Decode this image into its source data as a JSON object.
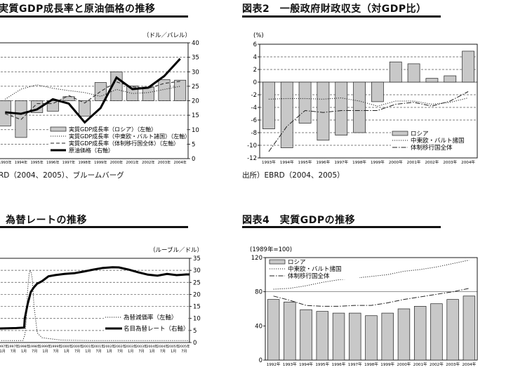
{
  "panels": {
    "p1": {
      "title": "実質GDP成長率と原油価格の推移",
      "source": "RD（2004、2005）、ブルームバーグ"
    },
    "p2": {
      "title": "図表2　一般政府財政収支（対GDP比）",
      "source": "出所）EBRD（2004、2005）"
    },
    "p3": {
      "title": "為替レートの推移"
    },
    "p4": {
      "title": "図表4　実質GDPの推移"
    }
  },
  "chart_data": [
    {
      "type": "bar",
      "panel": "p1",
      "unit_right": "（ドル／バレル）",
      "categories": [
        "1993年",
        "1994年",
        "1995年",
        "1996年",
        "1997年",
        "1998年",
        "1999年",
        "2000年",
        "2001年",
        "2002年",
        "2003年",
        "2004年"
      ],
      "ylim_left": [
        -20,
        20
      ],
      "ylim_right": [
        0,
        40
      ],
      "yticks_right": [
        "40",
        "35",
        "30",
        "25",
        "20",
        "15",
        "10",
        "5",
        "0"
      ],
      "series": [
        {
          "name": "実質GDP成長率（ロシア）（左軸）",
          "style": "bar",
          "values": [
            -8.7,
            -12.7,
            -4.1,
            -3.6,
            1.4,
            -5.3,
            6.3,
            10.0,
            5.1,
            4.7,
            7.3,
            7.1
          ]
        },
        {
          "name": "実質GDP成長率（中東欧・バルト諸国）（左軸）",
          "style": "dotted",
          "values": [
            0.5,
            4.0,
            5.5,
            4.3,
            3.5,
            2.8,
            1.5,
            3.9,
            2.5,
            2.8,
            3.9,
            5.0
          ]
        },
        {
          "name": "実質GDP成長率（体制移行国全体）（左軸）",
          "style": "dashed",
          "values": [
            -4.5,
            -6.5,
            -1.0,
            -1.0,
            1.8,
            -0.8,
            3.2,
            6.5,
            4.8,
            4.3,
            6.0,
            6.7
          ]
        },
        {
          "name": "原油価格（右軸）",
          "style": "thick",
          "values": [
            16.0,
            15.5,
            17.0,
            20.5,
            19.0,
            12.5,
            17.5,
            28.0,
            24.0,
            24.5,
            28.5,
            34.5
          ]
        }
      ]
    },
    {
      "type": "bar",
      "panel": "p2",
      "unit_left": "(%)",
      "categories": [
        "1993年",
        "1994年",
        "1995年",
        "1996年",
        "1997年",
        "1998年",
        "1999年",
        "2000年",
        "2001年",
        "2002年",
        "2003年",
        "2004年"
      ],
      "ylim": [
        -12,
        6
      ],
      "yticks": [
        "6",
        "4",
        "2",
        "0",
        "-2",
        "-4",
        "-6",
        "-8",
        "-10",
        "-12"
      ],
      "series": [
        {
          "name": "ロシア",
          "style": "bar",
          "values": [
            -7.4,
            -10.4,
            -6.5,
            -9.2,
            -8.4,
            -8.0,
            -3.1,
            3.2,
            2.9,
            0.6,
            1.0,
            4.9
          ]
        },
        {
          "name": "中東欧・バルト諸国",
          "style": "dotted",
          "values": [
            -2.7,
            -2.6,
            -2.6,
            -2.7,
            -2.5,
            -3.0,
            -3.8,
            -3.0,
            -3.0,
            -3.5,
            -3.2,
            -2.5
          ]
        },
        {
          "name": "体制移行国全体",
          "style": "dashdot",
          "values": [
            -11.0,
            -7.0,
            -4.5,
            -4.8,
            -4.5,
            -4.5,
            -4.5,
            -3.5,
            -3.2,
            -3.8,
            -3.0,
            -1.5
          ]
        }
      ]
    },
    {
      "type": "line",
      "panel": "p3",
      "unit_right": "（ルーブル／ドル）",
      "ylim_right": [
        0,
        35
      ],
      "yticks_right": [
        "35",
        "30",
        "25",
        "20",
        "15",
        "10",
        "5",
        "0"
      ],
      "x_year_labels": [
        "1997年",
        "1997年",
        "1998年",
        "1998年",
        "1999年",
        "1999年",
        "2000年",
        "2000年",
        "2001年",
        "2001年",
        "2002年",
        "2002年",
        "2003年",
        "2003年",
        "2004年",
        "2004年",
        "2005年",
        "2005年"
      ],
      "x_month_labels": [
        "1月",
        "7月",
        "1月",
        "7月",
        "1月",
        "7月",
        "1月",
        "7月",
        "1月",
        "7月",
        "1月",
        "7月",
        "1月",
        "7月",
        "1月",
        "7月",
        "1月",
        "7月"
      ],
      "series": [
        {
          "name": "為替減価率（左軸）",
          "style": "dotted",
          "x": [
            0,
            4,
            8,
            8.6,
            9,
            9.5,
            10,
            10.4,
            10.9,
            11.5,
            12.5,
            14,
            20,
            30,
            40,
            55,
            60
          ],
          "values": [
            0.8,
            0.8,
            0.8,
            3,
            8,
            22,
            29,
            30,
            27,
            15,
            4,
            2,
            1,
            0.8,
            0.8,
            0.8,
            0.8
          ]
        },
        {
          "name": "名目為替レート（右軸）",
          "style": "thick",
          "x": [
            0,
            6,
            8.4,
            8.6,
            9.5,
            10.5,
            11.5,
            12.5,
            13,
            14,
            16,
            18,
            21,
            24,
            27,
            30,
            33,
            36,
            38,
            41,
            44,
            47,
            50,
            53,
            56,
            59,
            60
          ],
          "values": [
            5.8,
            6.0,
            6.2,
            10.0,
            16.0,
            21.0,
            23.0,
            24.5,
            24.8,
            25.5,
            27.5,
            28.0,
            28.5,
            28.8,
            29.5,
            30.3,
            31.0,
            31.3,
            31.2,
            30.3,
            29.2,
            28.2,
            27.8,
            28.5,
            28.0,
            28.3,
            28.3
          ]
        }
      ]
    },
    {
      "type": "bar",
      "panel": "p4",
      "unit_left": "(1989年=100)",
      "categories": [
        "1992年",
        "1993年",
        "1994年",
        "1995年",
        "1996年",
        "1997年",
        "1998年",
        "1999年",
        "2000年",
        "2001年",
        "2002年",
        "2003年",
        "2004年"
      ],
      "ylim": [
        0,
        120
      ],
      "yticks": [
        "120",
        "80",
        "40",
        "0"
      ],
      "series": [
        {
          "name": "ロシア",
          "style": "bar",
          "values": [
            71,
            68,
            59,
            57,
            55,
            55,
            52,
            55,
            60,
            63,
            66,
            71,
            75
          ]
        },
        {
          "name": "中東欧・バルト諸国",
          "style": "dotted",
          "values": [
            83,
            84,
            87,
            91,
            94,
            96,
            98,
            100,
            104,
            106,
            109,
            113,
            117
          ]
        },
        {
          "name": "体制移行国全体",
          "style": "dashdot",
          "values": [
            75,
            70,
            64,
            63,
            63,
            64,
            64,
            67,
            71,
            74,
            77,
            80,
            84
          ]
        }
      ]
    }
  ]
}
